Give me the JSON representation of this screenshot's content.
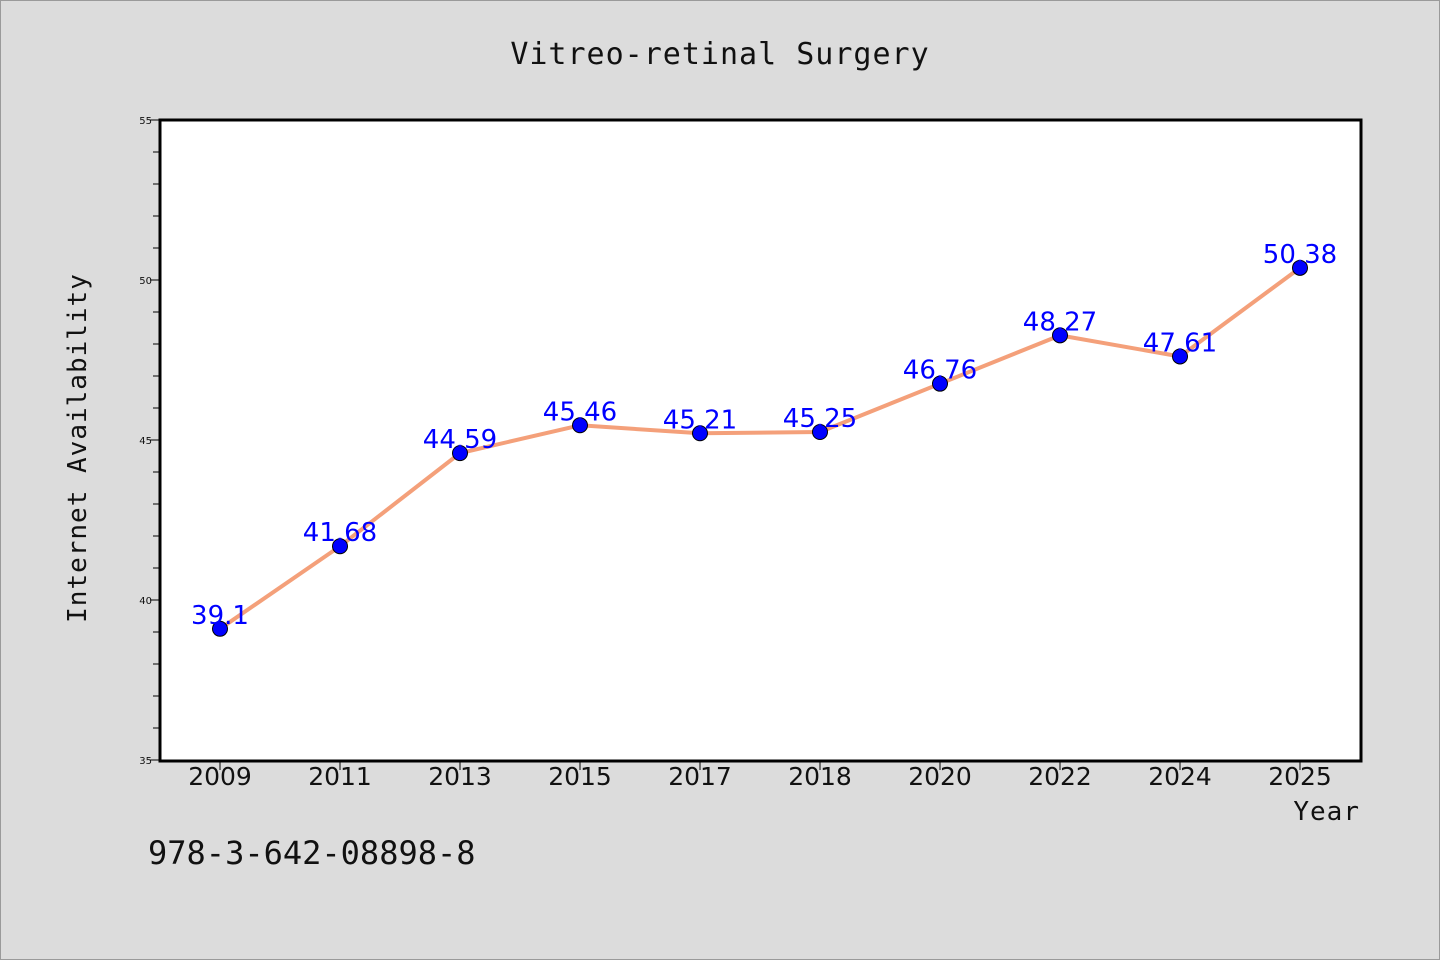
{
  "chart_data": {
    "type": "line",
    "title": "Vitreo-retinal Surgery",
    "xlabel": "Year",
    "ylabel": "Internet Availability",
    "categories": [
      "2009",
      "2011",
      "2013",
      "2015",
      "2017",
      "2018",
      "2020",
      "2022",
      "2024",
      "2025"
    ],
    "series": [
      {
        "values": [
          39.1,
          41.68,
          44.59,
          45.46,
          45.21,
          45.25,
          46.76,
          48.27,
          47.61,
          50.38
        ],
        "labels": [
          "39.1",
          "41.68",
          "44.59",
          "45.46",
          "45.21",
          "45.25",
          "46.76",
          "48.27",
          "47.61",
          "50.38"
        ]
      }
    ],
    "ylim": [
      35,
      55
    ],
    "yticks": [
      "35",
      "40",
      "45",
      "50",
      "55"
    ],
    "grid": false,
    "line_color": "#f4a07a",
    "marker_color": "#0000ff",
    "label_color": "#0000ff"
  },
  "footer": {
    "code": "978-3-642-08898-8"
  }
}
